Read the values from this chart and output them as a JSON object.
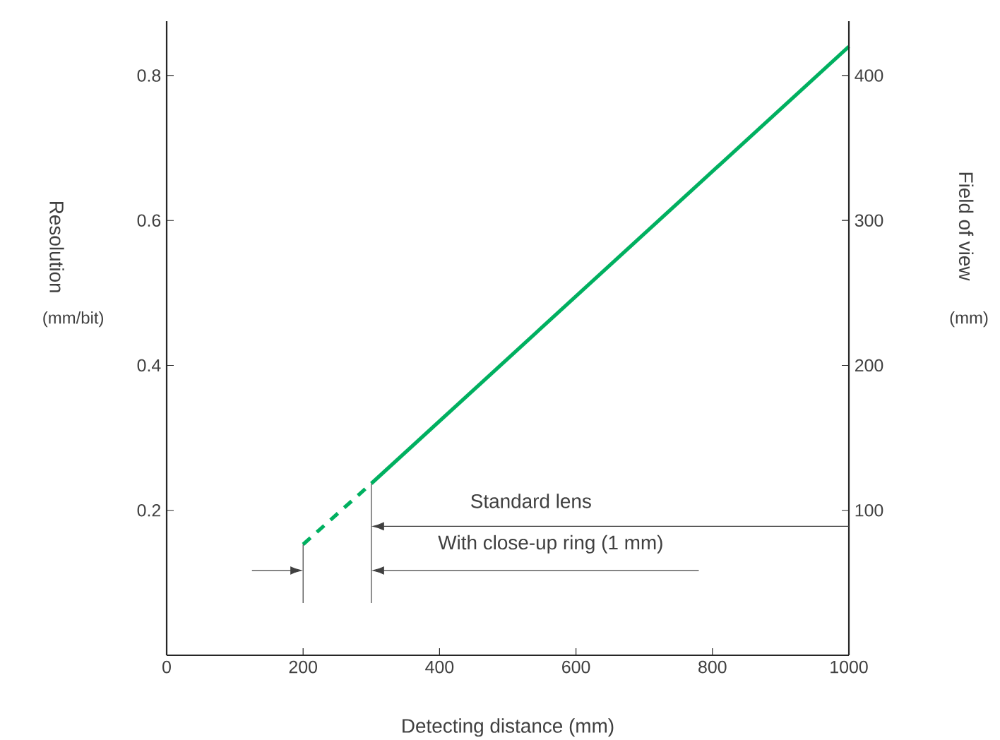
{
  "chart_data": {
    "type": "line",
    "xlabel": "Detecting distance (mm)",
    "ylabel": "Resolution",
    "y2label": "Field of view",
    "annotations": [
      "(mm/bit)",
      "(mm)",
      "Standard lens",
      "With close-up ring (1 mm)"
    ],
    "x": [
      300,
      1000
    ],
    "series": [
      {
        "color": "#00b060",
        "values": [
          0.237,
          0.84
        ],
        "line_style": "solid"
      },
      {
        "color": "#00b060",
        "x": [
          200,
          300
        ],
        "values": [
          0.153,
          0.237
        ],
        "line_style": "dashed"
      }
    ],
    "xlim": [
      0,
      1000
    ],
    "xticks": [
      0,
      200,
      400,
      600,
      800,
      1000
    ],
    "ylim": [
      0,
      0.875
    ],
    "yticks": [
      0.2,
      0.4,
      0.6,
      0.8
    ],
    "y2lim": [
      0,
      437.5
    ],
    "y2ticks": [
      100,
      200,
      300,
      400
    ]
  }
}
